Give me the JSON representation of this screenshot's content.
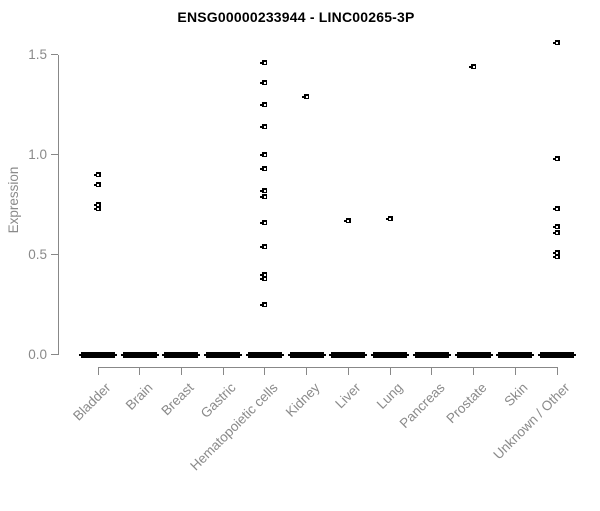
{
  "chart_data": {
    "type": "scatter",
    "title": "ENSG00000233944 - LINC00265-3P",
    "ylabel": "Expression",
    "xlabel": "",
    "ylim": [
      0.0,
      1.5
    ],
    "yticks": [
      "0.0",
      "0.5",
      "1.0",
      "1.5"
    ],
    "grid": false,
    "legend": false,
    "marker": "small-black-open-square",
    "categories": [
      "Bladder",
      "Brain",
      "Breast",
      "Gastric",
      "Hematopoietic cells",
      "Kidney",
      "Liver",
      "Lung",
      "Pancreas",
      "Prostate",
      "Skin",
      "Unknown / Other"
    ],
    "series": [
      {
        "name": "Bladder",
        "zero_value_bar": true,
        "values": [
          0.9,
          0.85,
          0.75,
          0.73
        ]
      },
      {
        "name": "Brain",
        "zero_value_bar": true,
        "values": []
      },
      {
        "name": "Breast",
        "zero_value_bar": true,
        "values": []
      },
      {
        "name": "Gastric",
        "zero_value_bar": true,
        "values": []
      },
      {
        "name": "Hematopoietic cells",
        "zero_value_bar": true,
        "values": [
          1.46,
          1.36,
          1.25,
          1.14,
          1.0,
          0.93,
          0.82,
          0.79,
          0.66,
          0.54,
          0.4,
          0.38,
          0.25
        ]
      },
      {
        "name": "Kidney",
        "zero_value_bar": true,
        "values": [
          1.29
        ]
      },
      {
        "name": "Liver",
        "zero_value_bar": true,
        "values": [
          0.67
        ]
      },
      {
        "name": "Lung",
        "zero_value_bar": true,
        "values": [
          0.68
        ]
      },
      {
        "name": "Pancreas",
        "zero_value_bar": true,
        "values": []
      },
      {
        "name": "Prostate",
        "zero_value_bar": true,
        "values": [
          1.44
        ]
      },
      {
        "name": "Skin",
        "zero_value_bar": true,
        "values": []
      },
      {
        "name": "Unknown / Other",
        "zero_value_bar": true,
        "values": [
          1.56,
          0.98,
          0.73,
          0.64,
          0.61,
          0.51,
          0.49
        ]
      }
    ],
    "zero_value_bar_note": "thick black dash at expression 0.0 under every category (dense cluster of samples at zero)"
  },
  "colors": {
    "background": "#ffffff",
    "title": "#000000",
    "axis": "#888888",
    "labels": "#8a8a8a",
    "points": "#000000"
  }
}
